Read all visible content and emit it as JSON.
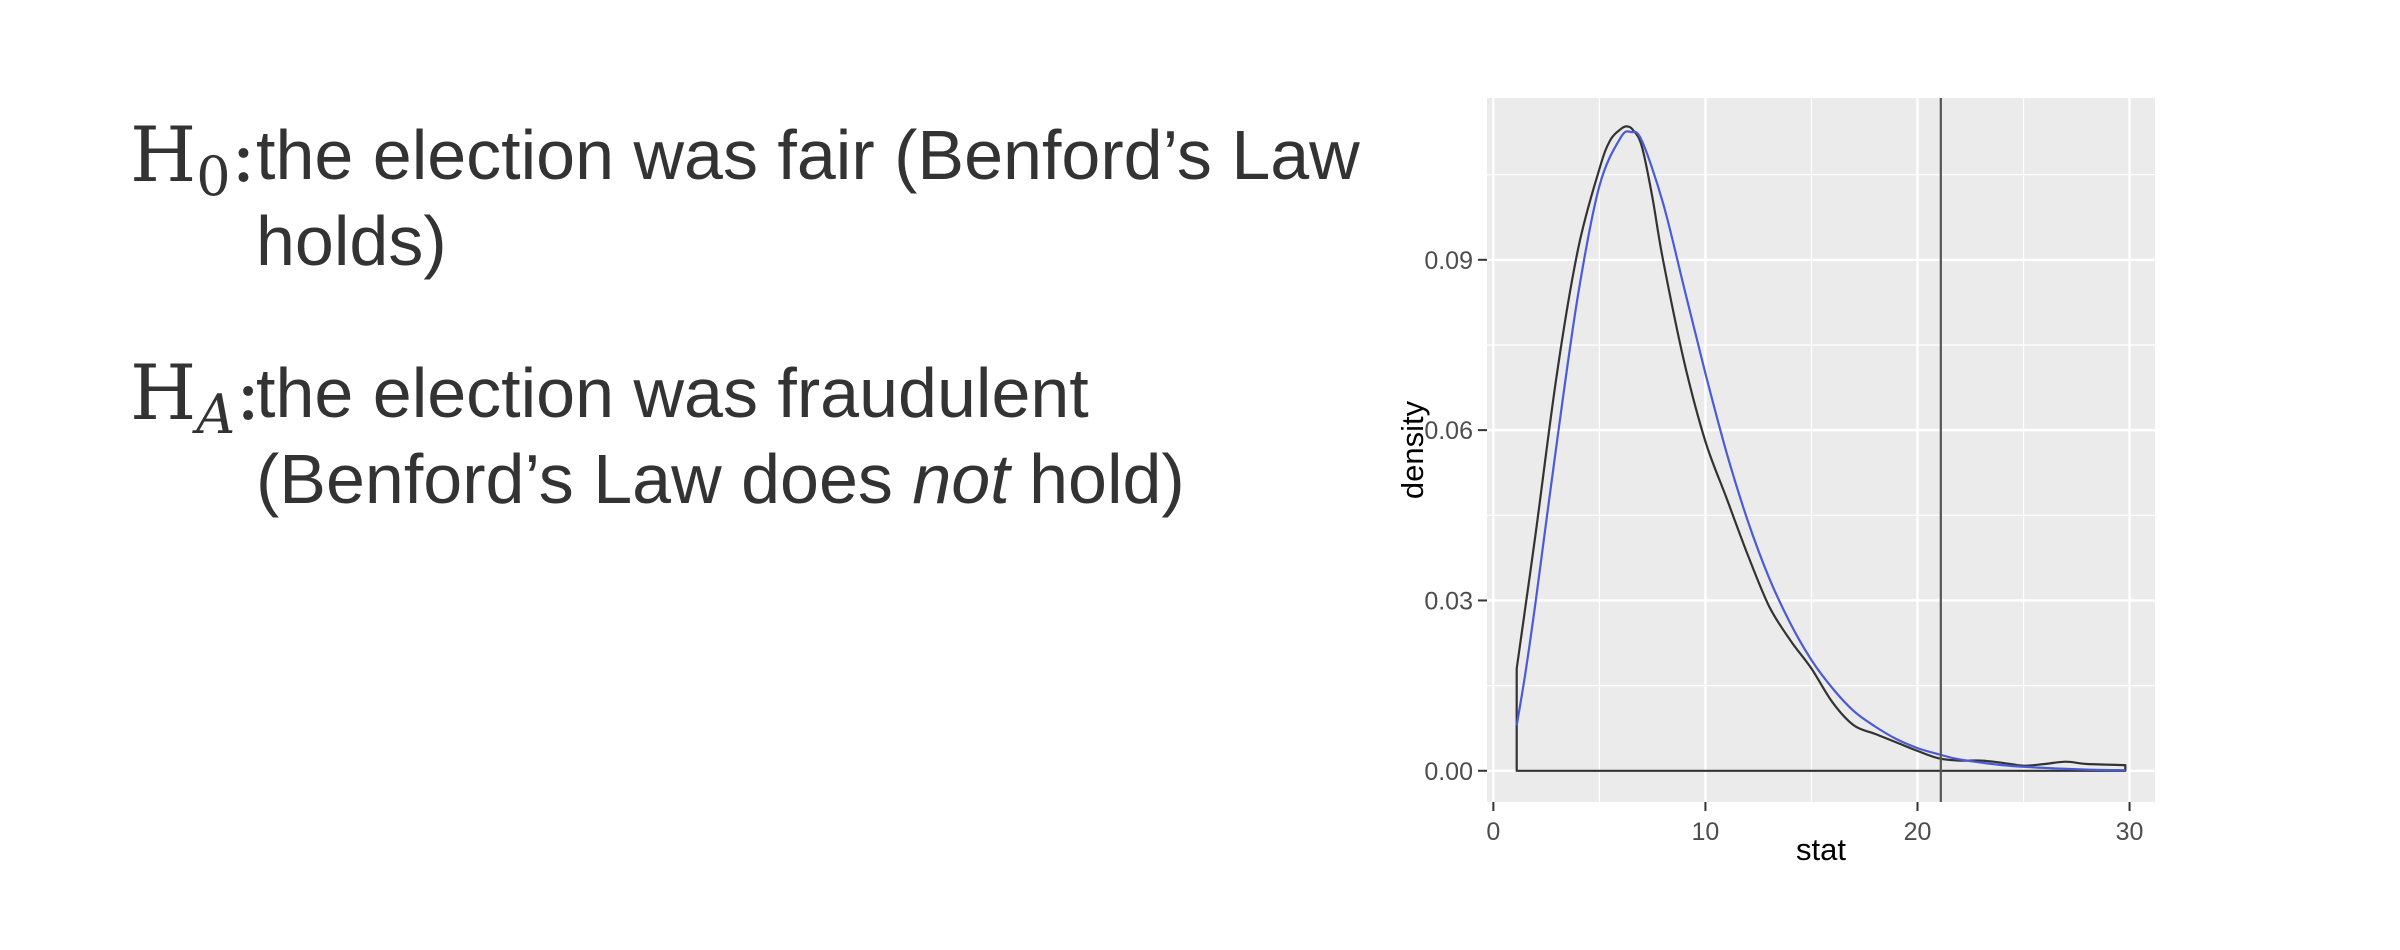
{
  "hypotheses": {
    "h0": {
      "symbol": "H",
      "subscript": "0",
      "colon": ":",
      "text": "the election was fair (Benford’s Law holds)"
    },
    "ha": {
      "symbol": "H",
      "subscript": "A",
      "colon": ":",
      "text_before": "the election was fraudulent (Benford’s Law does ",
      "text_emphasis": "not",
      "text_after": " hold)"
    }
  },
  "chart_data": {
    "type": "line",
    "xlabel": "stat",
    "ylabel": "density",
    "xlim": [
      -0.3,
      31.2
    ],
    "ylim": [
      -0.0055,
      0.1185
    ],
    "x_ticks": [
      0,
      10,
      20,
      30
    ],
    "y_ticks": [
      0.0,
      0.03,
      0.06,
      0.09
    ],
    "x_tick_labels": [
      "0",
      "10",
      "20",
      "30"
    ],
    "y_tick_labels": [
      "0.00",
      "0.03",
      "0.06",
      "0.09"
    ],
    "grid": true,
    "vline_x": 21.1,
    "colors": {
      "panel": "#EBEBEB",
      "grid": "#FFFFFF",
      "empirical": "#333333",
      "theoretical": "#4A5BD8",
      "vline": "#555555"
    },
    "series": [
      {
        "kind": "empirical-density",
        "x": [
          1.1,
          1.1,
          2.0,
          3.0,
          4.0,
          5.0,
          5.5,
          6.0,
          6.3,
          6.6,
          7.0,
          7.5,
          8.0,
          9.0,
          10.0,
          11.0,
          12.0,
          13.0,
          14.0,
          15.0,
          16.0,
          17.0,
          18.0,
          19.0,
          20.0,
          21.0,
          22.0,
          23.0,
          24.0,
          25.0,
          26.0,
          27.0,
          28.0,
          29.8
        ],
        "y": [
          0.0,
          0.018,
          0.042,
          0.07,
          0.092,
          0.106,
          0.111,
          0.113,
          0.1135,
          0.1128,
          0.11,
          0.101,
          0.09,
          0.072,
          0.058,
          0.048,
          0.038,
          0.029,
          0.023,
          0.018,
          0.012,
          0.008,
          0.0065,
          0.005,
          0.0035,
          0.0022,
          0.0018,
          0.0018,
          0.0014,
          0.0009,
          0.0012,
          0.0016,
          0.0012,
          0.001
        ]
      },
      {
        "kind": "chi-square-density",
        "x": [
          1.1,
          1.5,
          2.0,
          3.0,
          4.0,
          5.0,
          6.0,
          6.5,
          7.0,
          8.0,
          9.0,
          10.0,
          11.0,
          12.0,
          13.0,
          14.0,
          15.0,
          16.0,
          17.0,
          18.0,
          19.0,
          20.0,
          21.0,
          22.0,
          24.0,
          26.0,
          28.0,
          29.8
        ],
        "y": [
          0.008,
          0.017,
          0.03,
          0.058,
          0.084,
          0.103,
          0.1115,
          0.1125,
          0.111,
          0.1,
          0.085,
          0.07,
          0.056,
          0.044,
          0.034,
          0.026,
          0.0195,
          0.0145,
          0.0105,
          0.0078,
          0.0056,
          0.004,
          0.0029,
          0.002,
          0.001,
          0.0005,
          0.0002,
          0.0001
        ]
      }
    ]
  }
}
